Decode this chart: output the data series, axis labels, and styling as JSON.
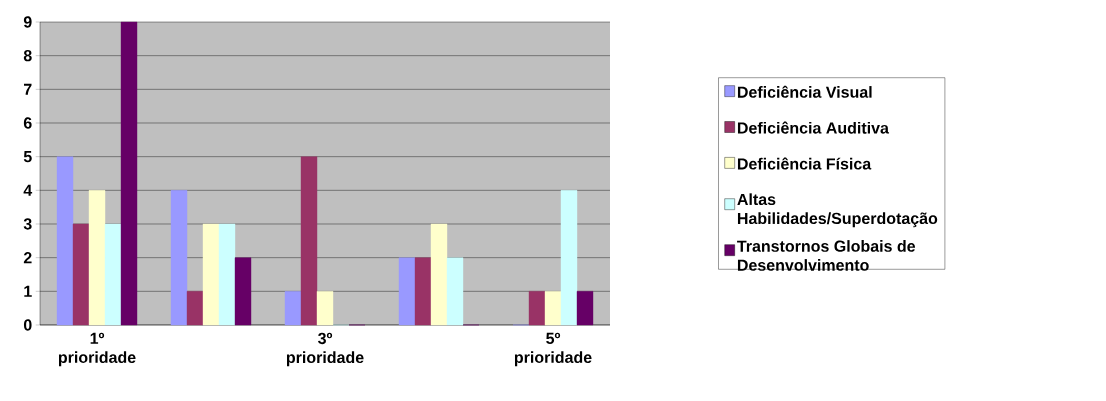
{
  "chart_data": {
    "type": "bar",
    "categories": [
      "1º prioridade",
      null,
      "3º prioridade",
      null,
      "5º prioridade"
    ],
    "series": [
      {
        "name": "Deficiência Visual",
        "color": "#9999ff",
        "values": [
          5,
          4,
          1,
          2,
          0
        ]
      },
      {
        "name": "Deficiência Auditiva",
        "color": "#993366",
        "values": [
          3,
          1,
          5,
          2,
          1
        ]
      },
      {
        "name": "Deficiência Física",
        "color": "#ffffcc",
        "values": [
          4,
          3,
          1,
          3,
          1
        ]
      },
      {
        "name": "Altas Habilidades/Superdotação",
        "color": "#ccffff",
        "values": [
          3,
          3,
          0,
          2,
          4
        ]
      },
      {
        "name": "Transtornos Globais de Desenvolvimento",
        "color": "#660066",
        "values": [
          9,
          2,
          0,
          0,
          1
        ]
      }
    ],
    "ylim": [
      0,
      9
    ],
    "yticks": [
      0,
      1,
      2,
      3,
      4,
      5,
      6,
      7,
      8,
      9
    ],
    "grid": "y",
    "legend": "right"
  }
}
